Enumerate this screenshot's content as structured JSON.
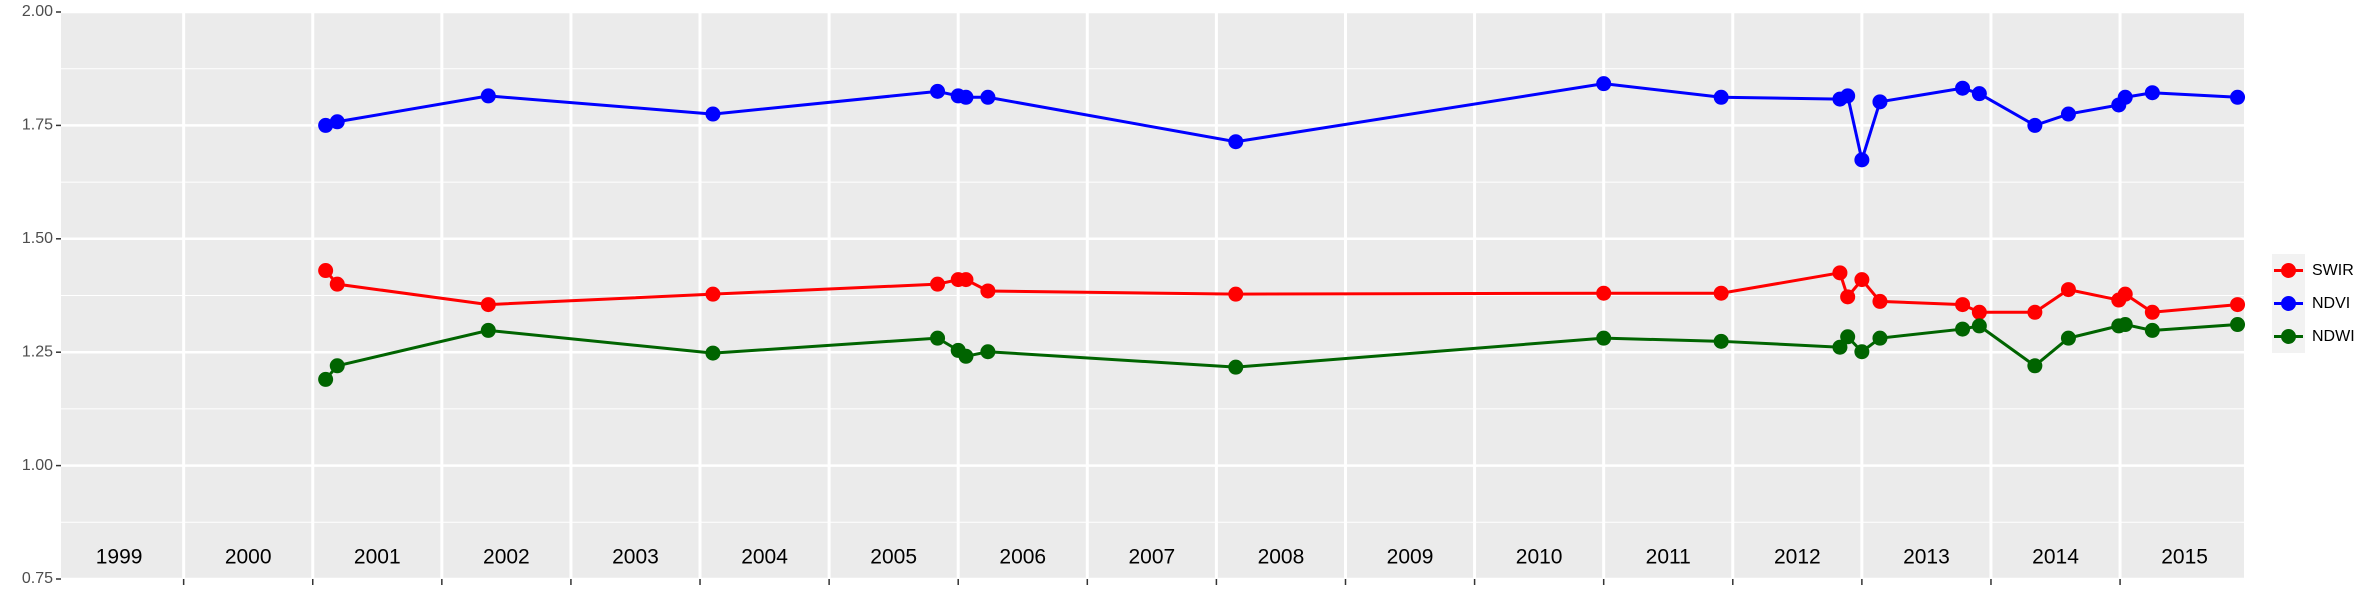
{
  "chart_data": {
    "type": "line",
    "x": [
      2001.1,
      2001.19,
      2002.36,
      2004.1,
      2005.84,
      2006.0,
      2006.06,
      2006.23,
      2008.15,
      2011.0,
      2011.91,
      2012.83,
      2012.89,
      2013.0,
      2013.14,
      2013.78,
      2013.91,
      2014.34,
      2014.6,
      2014.99,
      2015.04,
      2015.25,
      2015.91
    ],
    "series": [
      {
        "name": "SWIR",
        "color": "#ff0000",
        "values": [
          1.43,
          1.4,
          1.355,
          1.378,
          1.4,
          1.41,
          1.41,
          1.385,
          1.378,
          1.38,
          1.38,
          1.425,
          1.372,
          1.41,
          1.362,
          1.355,
          1.338,
          1.338,
          1.388,
          1.365,
          1.378,
          1.338,
          1.355
        ]
      },
      {
        "name": "NDVI",
        "color": "#0000ff",
        "values": [
          1.75,
          1.758,
          1.815,
          1.775,
          1.825,
          1.815,
          1.812,
          1.812,
          1.714,
          1.842,
          1.812,
          1.808,
          1.815,
          1.674,
          1.802,
          1.832,
          1.82,
          1.75,
          1.775,
          1.795,
          1.812,
          1.822,
          1.812
        ]
      },
      {
        "name": "NDWI",
        "color": "#006400",
        "values": [
          1.19,
          1.22,
          1.298,
          1.248,
          1.281,
          1.254,
          1.241,
          1.251,
          1.217,
          1.281,
          1.274,
          1.261,
          1.284,
          1.251,
          1.281,
          1.301,
          1.308,
          1.22,
          1.281,
          1.308,
          1.311,
          1.298,
          1.311
        ]
      }
    ],
    "xlim": [
      1999.05,
      2015.96
    ],
    "xticks": [
      2000,
      2001,
      2002,
      2003,
      2004,
      2005,
      2006,
      2007,
      2008,
      2009,
      2010,
      2011,
      2012,
      2013,
      2014,
      2015
    ],
    "year_labels": [
      {
        "value": 1999.5,
        "label": "1999"
      },
      {
        "value": 2000.5,
        "label": "2000"
      },
      {
        "value": 2001.5,
        "label": "2001"
      },
      {
        "value": 2002.5,
        "label": "2002"
      },
      {
        "value": 2003.5,
        "label": "2003"
      },
      {
        "value": 2004.5,
        "label": "2004"
      },
      {
        "value": 2005.5,
        "label": "2005"
      },
      {
        "value": 2006.5,
        "label": "2006"
      },
      {
        "value": 2007.5,
        "label": "2007"
      },
      {
        "value": 2008.5,
        "label": "2008"
      },
      {
        "value": 2009.5,
        "label": "2009"
      },
      {
        "value": 2010.5,
        "label": "2010"
      },
      {
        "value": 2011.5,
        "label": "2011"
      },
      {
        "value": 2012.5,
        "label": "2012"
      },
      {
        "value": 2013.5,
        "label": "2013"
      },
      {
        "value": 2014.5,
        "label": "2014"
      },
      {
        "value": 2015.5,
        "label": "2015"
      }
    ],
    "ylim": [
      0.75,
      2.0
    ],
    "yticks": [
      {
        "value": 0.75,
        "label": "0.75"
      },
      {
        "value": 1.0,
        "label": "1.00"
      },
      {
        "value": 1.25,
        "label": "1.25"
      },
      {
        "value": 1.5,
        "label": "1.50"
      },
      {
        "value": 1.75,
        "label": "1.75"
      },
      {
        "value": 2.0,
        "label": "2.00"
      }
    ],
    "grid": true,
    "legend": "right"
  }
}
